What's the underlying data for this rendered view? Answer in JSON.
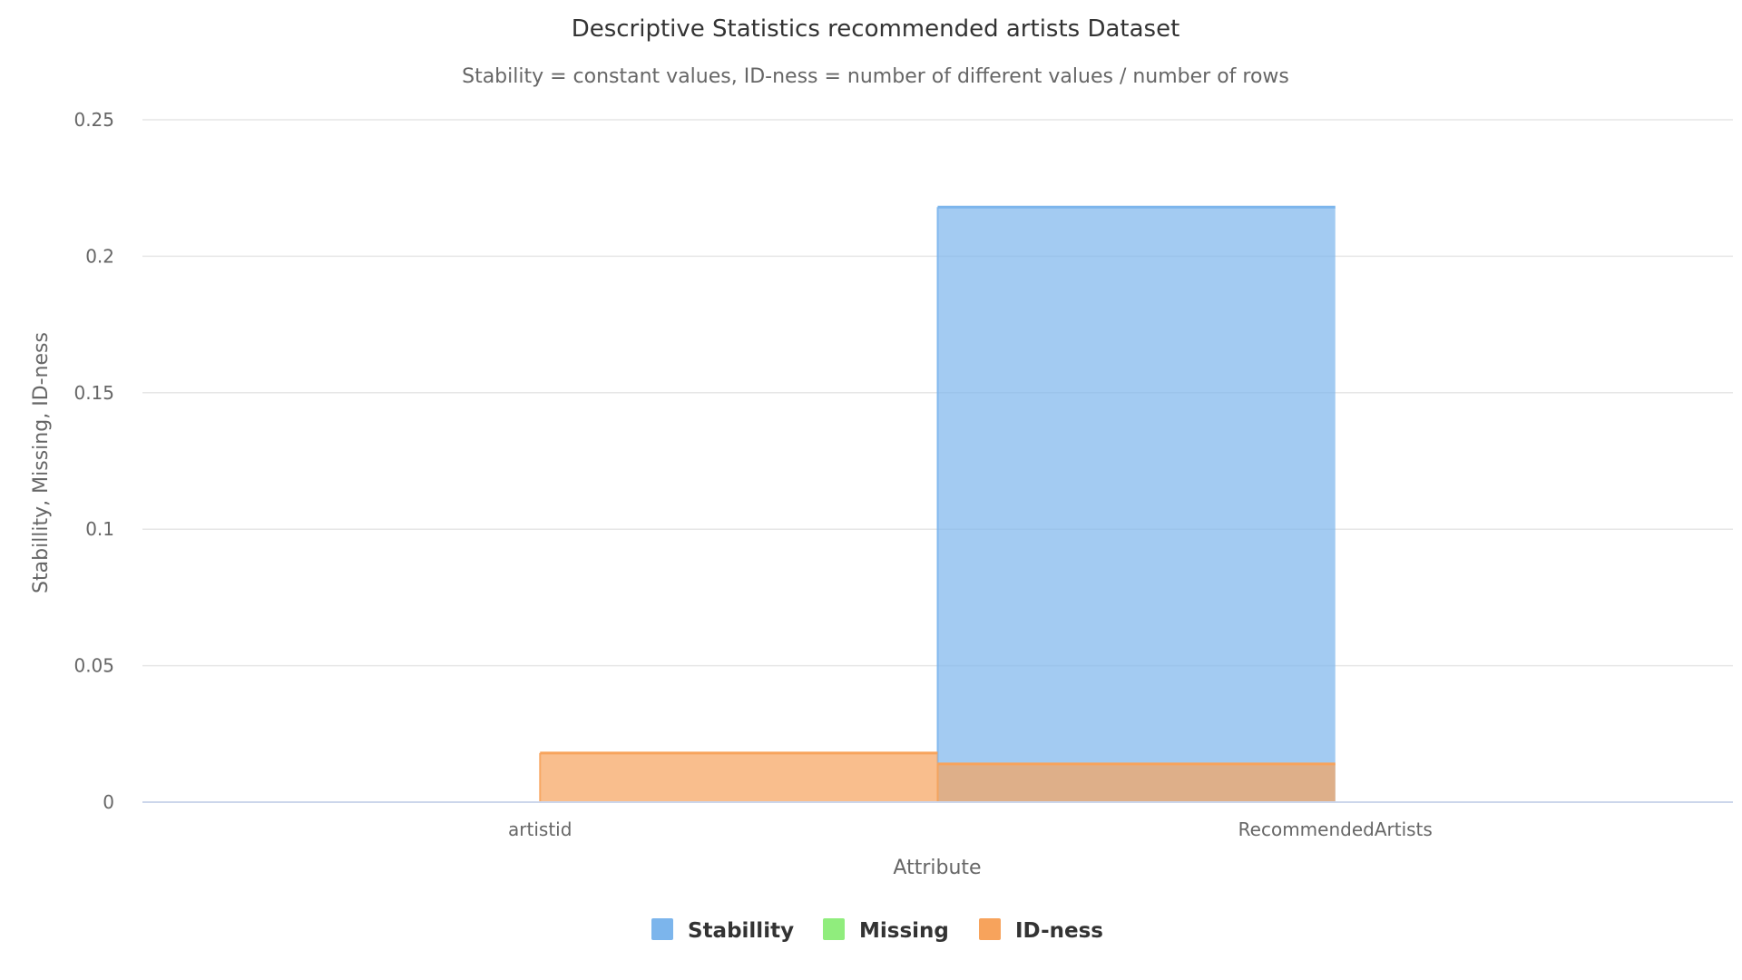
{
  "chart_data": {
    "type": "area",
    "title": "Descriptive Statistics recommended artists Dataset",
    "subtitle": "Stability = constant values, ID-ness = number of different values / number of rows",
    "xlabel": "Attribute",
    "ylabel": "Stabillity, Missing, ID-ness",
    "categories": [
      "artistid",
      "RecommendedArtists"
    ],
    "ylim": [
      0,
      0.25
    ],
    "yticks": [
      {
        "value": 0,
        "label": "0"
      },
      {
        "value": 0.05,
        "label": "0.05"
      },
      {
        "value": 0.1,
        "label": "0.1"
      },
      {
        "value": 0.15,
        "label": "0.15"
      },
      {
        "value": 0.2,
        "label": "0.2"
      },
      {
        "value": 0.25,
        "label": "0.25"
      }
    ],
    "grid": true,
    "legend_position": "bottom-center",
    "step": "center",
    "series": [
      {
        "name": "Stabillity",
        "color": "#7cb5ec",
        "values": [
          0,
          0.218
        ]
      },
      {
        "name": "Missing",
        "color": "#90ed7d",
        "values": [
          0,
          0
        ]
      },
      {
        "name": "ID-ness",
        "color": "#f7a35c",
        "values": [
          0.018,
          0.014
        ]
      }
    ]
  }
}
